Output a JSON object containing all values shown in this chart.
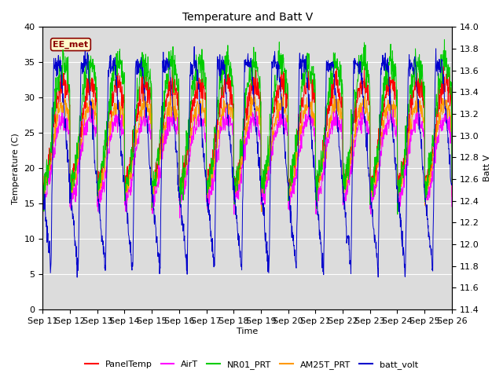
{
  "title": "Temperature and Batt V",
  "xlabel": "Time",
  "ylabel_left": "Temperature (C)",
  "ylabel_right": "Batt V",
  "annotation": "EE_met",
  "ylim_left": [
    0,
    40
  ],
  "ylim_right": [
    11.4,
    14.0
  ],
  "x_tick_labels": [
    "Sep 11",
    "Sep 12",
    "Sep 13",
    "Sep 14",
    "Sep 15",
    "Sep 16",
    "Sep 17",
    "Sep 18",
    "Sep 19",
    "Sep 20",
    "Sep 21",
    "Sep 22",
    "Sep 23",
    "Sep 24",
    "Sep 25",
    "Sep 26"
  ],
  "background_color": "#dcdcdc",
  "figure_color": "#ffffff",
  "colors": {
    "PanelTemp": "#ff0000",
    "AirT": "#ff00ff",
    "NR01_PRT": "#00cc00",
    "AM25T_PRT": "#ff9900",
    "batt_volt": "#0000cc"
  },
  "legend_labels": [
    "PanelTemp",
    "AirT",
    "NR01_PRT",
    "AM25T_PRT",
    "batt_volt"
  ],
  "num_days": 15,
  "pts_per_day": 96,
  "figsize": [
    6.4,
    4.8
  ],
  "dpi": 100
}
